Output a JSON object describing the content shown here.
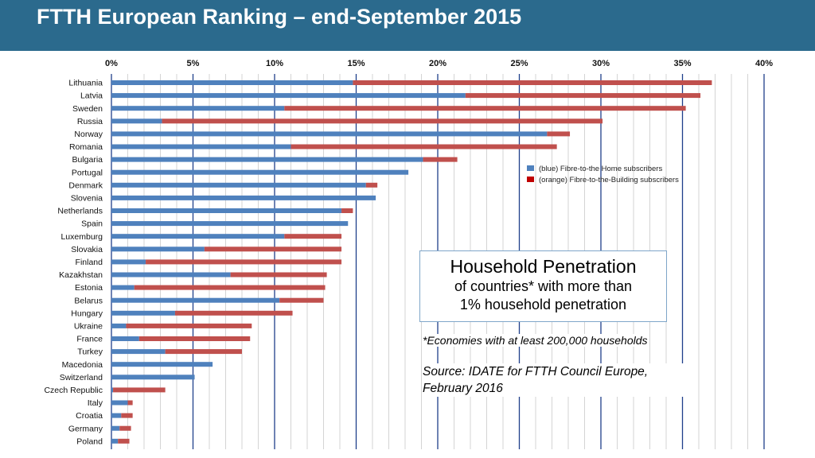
{
  "header": {
    "title": "FTTH European Ranking – end-September 2015"
  },
  "info_box": {
    "title": "Household Penetration",
    "line1": "of countries* with more than",
    "line2": "1% household penetration"
  },
  "note": "*Economies with at least 200,000 households",
  "source": "Source: IDATE for FTTH Council Europe, February 2016",
  "colors": {
    "ftth": "#4f81bd",
    "fttb": "#c0504d",
    "header": "#2b6a8d"
  },
  "chart_data": {
    "type": "bar",
    "orientation": "horizontal",
    "stacked": true,
    "xlim": [
      0,
      40
    ],
    "x_ticks": [
      "0%",
      "5%",
      "10%",
      "15%",
      "20%",
      "25%",
      "30%",
      "35%",
      "40%"
    ],
    "x_axis_position": "top",
    "grid": true,
    "legend_position": "right",
    "categories": [
      "Lithuania",
      "Latvia",
      "Sweden",
      "Russia",
      "Norway",
      "Romania",
      "Bulgaria",
      "Portugal",
      "Denmark",
      "Slovenia",
      "Netherlands",
      "Spain",
      "Luxemburg",
      "Slovakia",
      "Finland",
      "Kazakhstan",
      "Estonia",
      "Belarus",
      "Hungary",
      "Ukraine",
      "France",
      "Turkey",
      "Macedonia",
      "Switzerland",
      "Czech Republic",
      "Italy",
      "Croatia",
      "Germany",
      "Poland"
    ],
    "series": [
      {
        "name": "(blue) Fibre-to-the Home subscribers",
        "color": "#4f81bd",
        "values": [
          14.8,
          21.7,
          10.6,
          3.1,
          26.7,
          11.0,
          19.1,
          18.2,
          15.6,
          16.2,
          14.1,
          14.5,
          10.6,
          5.7,
          2.1,
          7.3,
          1.4,
          10.3,
          3.9,
          0.9,
          1.7,
          3.3,
          6.2,
          5.1,
          0.1,
          1.0,
          0.6,
          0.5,
          0.4
        ],
        "totals": [
          36.8,
          36.1,
          35.2,
          30.1,
          28.1,
          27.3,
          21.2,
          18.2,
          16.3,
          16.2,
          14.8,
          14.5,
          14.1,
          14.1,
          14.1,
          13.2,
          13.1,
          13.0,
          11.1,
          8.6,
          8.5,
          8.0,
          6.2,
          5.1,
          3.3,
          1.3,
          1.3,
          1.2,
          1.1
        ]
      },
      {
        "name": "(orange) Fibre-to-the-Building subscribers",
        "color": "#c0504d",
        "values": [
          22.0,
          14.4,
          24.6,
          27.0,
          1.4,
          16.3,
          2.1,
          0.0,
          0.7,
          0.0,
          0.7,
          0.0,
          3.5,
          8.4,
          12.0,
          5.9,
          11.7,
          2.7,
          7.2,
          7.7,
          6.8,
          4.7,
          0.0,
          0.0,
          3.2,
          0.3,
          0.7,
          0.7,
          0.7
        ]
      }
    ]
  }
}
